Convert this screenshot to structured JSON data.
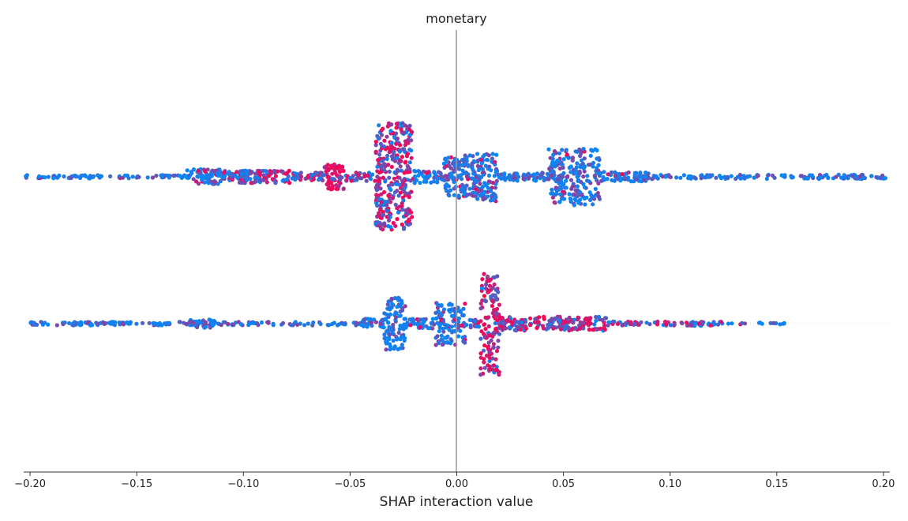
{
  "chart_data": {
    "type": "scatter",
    "subtype": "shap-beeswarm",
    "title": "monetary",
    "xlabel": "SHAP interaction value",
    "ylabel": "",
    "xlim": [
      -0.203,
      0.203
    ],
    "xticks": [
      -0.2,
      -0.15,
      -0.1,
      -0.05,
      0.0,
      0.05,
      0.1,
      0.15,
      0.2
    ],
    "xtick_labels": [
      "−0.20",
      "−0.15",
      "−0.10",
      "−0.05",
      "0.00",
      "0.05",
      "0.10",
      "0.15",
      "0.20"
    ],
    "zero_line": 0,
    "grid": false,
    "legend": "none",
    "colors": {
      "low": "#008bfb",
      "high": "#ff0052",
      "mid": "#7b5cd6",
      "zero_line": "#999999",
      "axis": "#333333"
    },
    "rows": [
      {
        "x_range": [
          -0.203,
          0.203
        ],
        "clusters": [
          {
            "x0": -0.203,
            "x1": -0.125,
            "spread": 0.05,
            "density": 0.4,
            "high": 0.0
          },
          {
            "x0": -0.127,
            "x1": -0.108,
            "spread": 0.22,
            "density": 1.6,
            "high": 0.1
          },
          {
            "x0": -0.107,
            "x1": -0.078,
            "spread": 0.18,
            "density": 1.6,
            "high": 0.4
          },
          {
            "x0": -0.078,
            "x1": -0.062,
            "spread": 0.12,
            "density": 1.2,
            "high": 0.25
          },
          {
            "x0": -0.062,
            "x1": -0.053,
            "spread": 0.36,
            "density": 2.6,
            "high": 0.7
          },
          {
            "x0": -0.052,
            "x1": -0.038,
            "spread": 0.12,
            "density": 1.0,
            "high": 0.2
          },
          {
            "x0": -0.038,
            "x1": -0.021,
            "spread": 1.55,
            "density": 7.0,
            "high": 0.45
          },
          {
            "x0": -0.021,
            "x1": -0.006,
            "spread": 0.18,
            "density": 1.2,
            "high": 0.1
          },
          {
            "x0": -0.006,
            "x1": 0.009,
            "spread": 0.62,
            "density": 3.2,
            "high": 0.05
          },
          {
            "x0": 0.009,
            "x1": 0.019,
            "spread": 0.7,
            "density": 3.6,
            "high": 0.08
          },
          {
            "x0": 0.019,
            "x1": 0.043,
            "spread": 0.12,
            "density": 0.9,
            "high": 0.0
          },
          {
            "x0": 0.043,
            "x1": 0.067,
            "spread": 0.82,
            "density": 3.4,
            "high": 0.04
          },
          {
            "x0": 0.067,
            "x1": 0.092,
            "spread": 0.14,
            "density": 1.0,
            "high": 0.03
          },
          {
            "x0": 0.092,
            "x1": 0.203,
            "spread": 0.06,
            "density": 0.45,
            "high": 0.01
          }
        ]
      },
      {
        "x_range": [
          -0.2,
          0.154
        ],
        "clusters": [
          {
            "x0": -0.2,
            "x1": -0.045,
            "spread": 0.05,
            "density": 0.45,
            "high": 0.0
          },
          {
            "x0": -0.125,
            "x1": -0.113,
            "spread": 0.12,
            "density": 0.8,
            "high": 0.0
          },
          {
            "x0": -0.045,
            "x1": -0.034,
            "spread": 0.14,
            "density": 1.0,
            "high": 0.0
          },
          {
            "x0": -0.034,
            "x1": -0.024,
            "spread": 0.75,
            "density": 3.4,
            "high": 0.0
          },
          {
            "x0": -0.024,
            "x1": -0.01,
            "spread": 0.14,
            "density": 1.0,
            "high": 0.05
          },
          {
            "x0": -0.01,
            "x1": 0.004,
            "spread": 0.62,
            "density": 3.0,
            "high": 0.1
          },
          {
            "x0": 0.004,
            "x1": 0.011,
            "spread": 0.12,
            "density": 1.0,
            "high": 0.2
          },
          {
            "x0": 0.011,
            "x1": 0.02,
            "spread": 1.5,
            "density": 5.5,
            "high": 0.6
          },
          {
            "x0": 0.02,
            "x1": 0.07,
            "spread": 0.2,
            "density": 1.4,
            "high": 0.45
          },
          {
            "x0": 0.07,
            "x1": 0.125,
            "spread": 0.06,
            "density": 0.6,
            "high": 0.35
          },
          {
            "x0": 0.125,
            "x1": 0.154,
            "spread": 0.03,
            "density": 0.2,
            "high": 0.1
          }
        ]
      }
    ]
  }
}
